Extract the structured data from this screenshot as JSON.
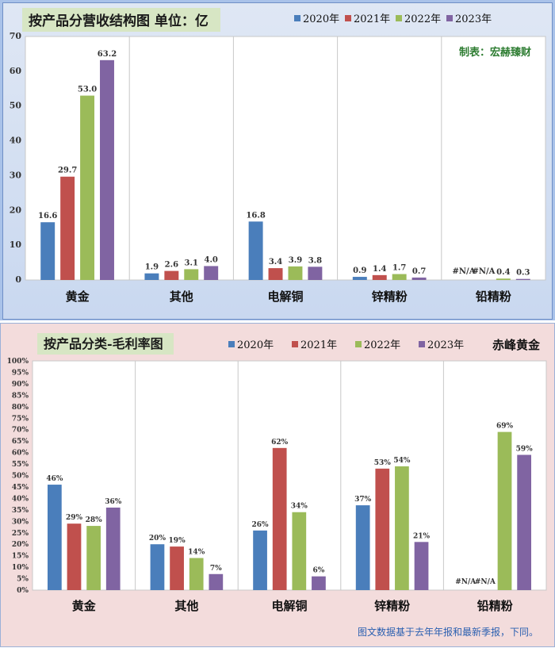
{
  "chart_data": [
    {
      "type": "bar",
      "title": "按产品分营收结构图 单位：亿",
      "annotation": "制表：宏赫臻财",
      "categories": [
        "黄金",
        "其他",
        "电解铜",
        "锌精粉",
        "铅精粉"
      ],
      "series": [
        {
          "name": "2020年",
          "color": "#4a7ebb",
          "values": [
            16.6,
            1.9,
            16.8,
            0.9,
            null
          ],
          "labels": [
            "16.6",
            "1.9",
            "16.8",
            "0.9",
            "#N/A"
          ]
        },
        {
          "name": "2021年",
          "color": "#c0504d",
          "values": [
            29.7,
            2.6,
            3.4,
            1.4,
            null
          ],
          "labels": [
            "29.7",
            "2.6",
            "3.4",
            "1.4",
            "#N/A"
          ]
        },
        {
          "name": "2022年",
          "color": "#9bbb59",
          "values": [
            53.0,
            3.1,
            3.9,
            1.7,
            0.4
          ],
          "labels": [
            "53.0",
            "3.1",
            "3.9",
            "1.7",
            "0.4"
          ]
        },
        {
          "name": "2023年",
          "color": "#8064a2",
          "values": [
            63.2,
            4.0,
            3.8,
            0.7,
            0.3
          ],
          "labels": [
            "63.2",
            "4.0",
            "3.8",
            "0.7",
            "0.3"
          ]
        }
      ],
      "ylim": [
        0,
        70
      ],
      "yticks": [
        "0",
        "10",
        "20",
        "30",
        "40",
        "50",
        "60",
        "70"
      ],
      "grid": "vertical-between-categories",
      "legend": "top-right"
    },
    {
      "type": "bar",
      "title": "按产品分类-毛利率图",
      "annotation": "赤峰黄金",
      "categories": [
        "黄金",
        "其他",
        "电解铜",
        "锌精粉",
        "铅精粉"
      ],
      "series": [
        {
          "name": "2020年",
          "color": "#4a7ebb",
          "values": [
            46,
            20,
            26,
            37,
            null
          ],
          "labels": [
            "46%",
            "20%",
            "26%",
            "37%",
            "#N/A"
          ]
        },
        {
          "name": "2021年",
          "color": "#c0504d",
          "values": [
            29,
            19,
            62,
            53,
            null
          ],
          "labels": [
            "29%",
            "19%",
            "62%",
            "53%",
            "#N/A"
          ]
        },
        {
          "name": "2022年",
          "color": "#9bbb59",
          "values": [
            28,
            14,
            34,
            54,
            69
          ],
          "labels": [
            "28%",
            "14%",
            "34%",
            "54%",
            "69%"
          ]
        },
        {
          "name": "2023年",
          "color": "#8064a2",
          "values": [
            36,
            7,
            6,
            21,
            59
          ],
          "labels": [
            "36%",
            "7%",
            "6%",
            "21%",
            "59%"
          ]
        }
      ],
      "ylim": [
        0,
        100
      ],
      "yticks": [
        "0%",
        "5%",
        "10%",
        "15%",
        "20%",
        "25%",
        "30%",
        "35%",
        "40%",
        "45%",
        "50%",
        "55%",
        "60%",
        "65%",
        "70%",
        "75%",
        "80%",
        "85%",
        "90%",
        "95%",
        "100%"
      ],
      "grid": "vertical-between-categories",
      "legend": "top"
    }
  ],
  "footnote": "图文数据基于去年年报和最新季报，下同。"
}
